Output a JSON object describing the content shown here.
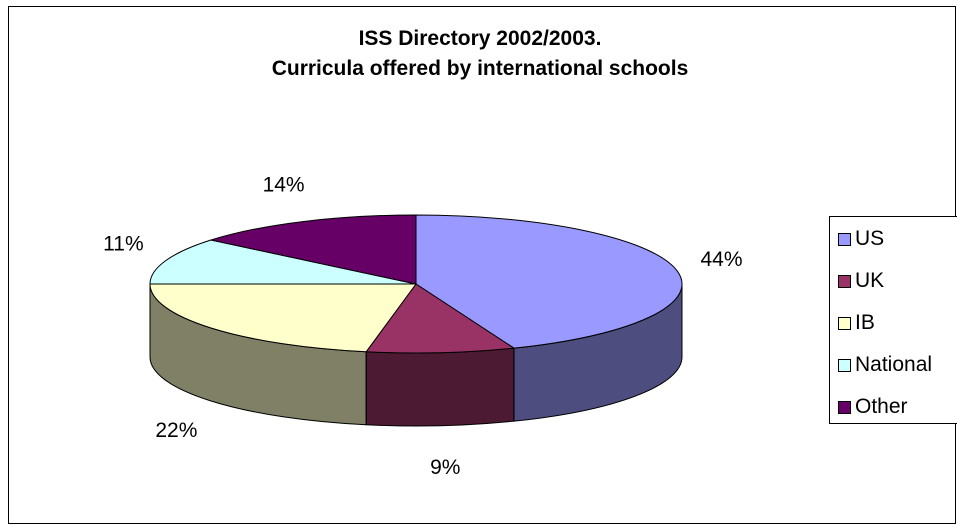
{
  "chart_data": {
    "type": "pie",
    "title_lines": [
      "ISS Directory 2002/2003.",
      "Curricula offered by international schools"
    ],
    "slices": [
      {
        "name": "US",
        "value": 44,
        "label": "44%",
        "color": "#9999FF"
      },
      {
        "name": "UK",
        "value": 9,
        "label": "9%",
        "color": "#993366"
      },
      {
        "name": "IB",
        "value": 22,
        "label": "22%",
        "color": "#FFFFCC"
      },
      {
        "name": "National",
        "value": 11,
        "label": "11%",
        "color": "#CCFFFF"
      },
      {
        "name": "Other",
        "value": 14,
        "label": "14%",
        "color": "#660066"
      }
    ],
    "three_d": true,
    "legend_position": "right"
  }
}
